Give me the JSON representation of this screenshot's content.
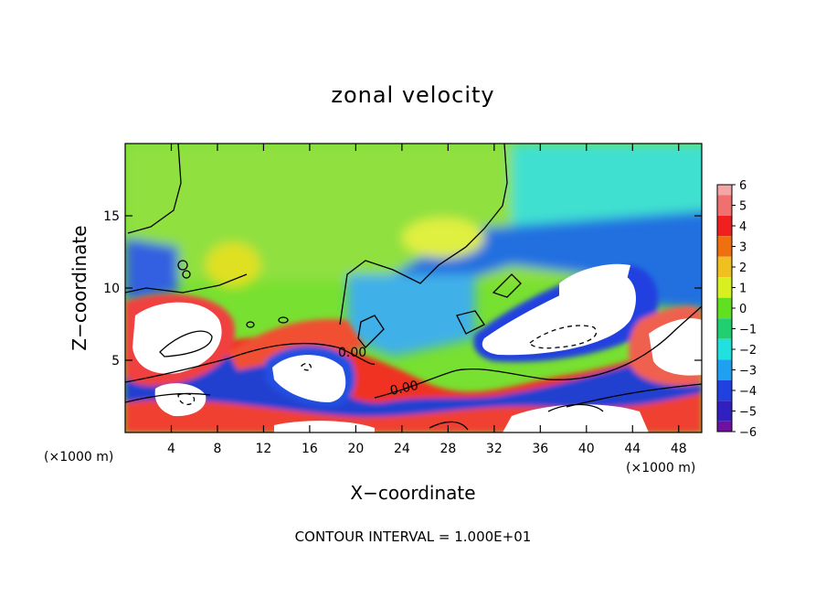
{
  "chart_data": {
    "type": "heatmap",
    "title": "zonal velocity",
    "xlabel": "X−coordinate",
    "ylabel": "Z−coordinate",
    "x_unit": "(×1000 m)",
    "z_unit": "(×1000 m)",
    "xlim": [
      0,
      50
    ],
    "ylim": [
      0,
      20
    ],
    "xticks": [
      4,
      8,
      12,
      16,
      20,
      24,
      28,
      32,
      36,
      40,
      44,
      48
    ],
    "xtick_labels": [
      "4",
      "8",
      "12",
      "16",
      "20",
      "24",
      "28",
      "32",
      "36",
      "40",
      "44",
      "48"
    ],
    "yticks": [
      5,
      10,
      15
    ],
    "ytick_labels": [
      "5",
      "10",
      "15"
    ],
    "colorbar": {
      "levels": [
        6,
        5,
        4,
        3,
        2,
        1,
        0,
        -1,
        -2,
        -3,
        -4,
        -5,
        -6
      ],
      "labels": [
        "6",
        "5",
        "4",
        "3",
        "2",
        "1",
        "0",
        "−1",
        "−2",
        "−3",
        "−4",
        "−5",
        "−6"
      ],
      "colors": [
        "#f4a6a6",
        "#f07070",
        "#f02020",
        "#f07010",
        "#f0c020",
        "#d8f020",
        "#60e020",
        "#20d070",
        "#20e0e0",
        "#20a0f0",
        "#2040e0",
        "#3020c0",
        "#7010a0"
      ],
      "saturation_color": "#ffffff"
    },
    "contour_labels": [
      "0.00",
      "0.00"
    ],
    "contour_interval_text": "CONTOUR INTERVAL = 1.000E+01",
    "grid": false
  }
}
